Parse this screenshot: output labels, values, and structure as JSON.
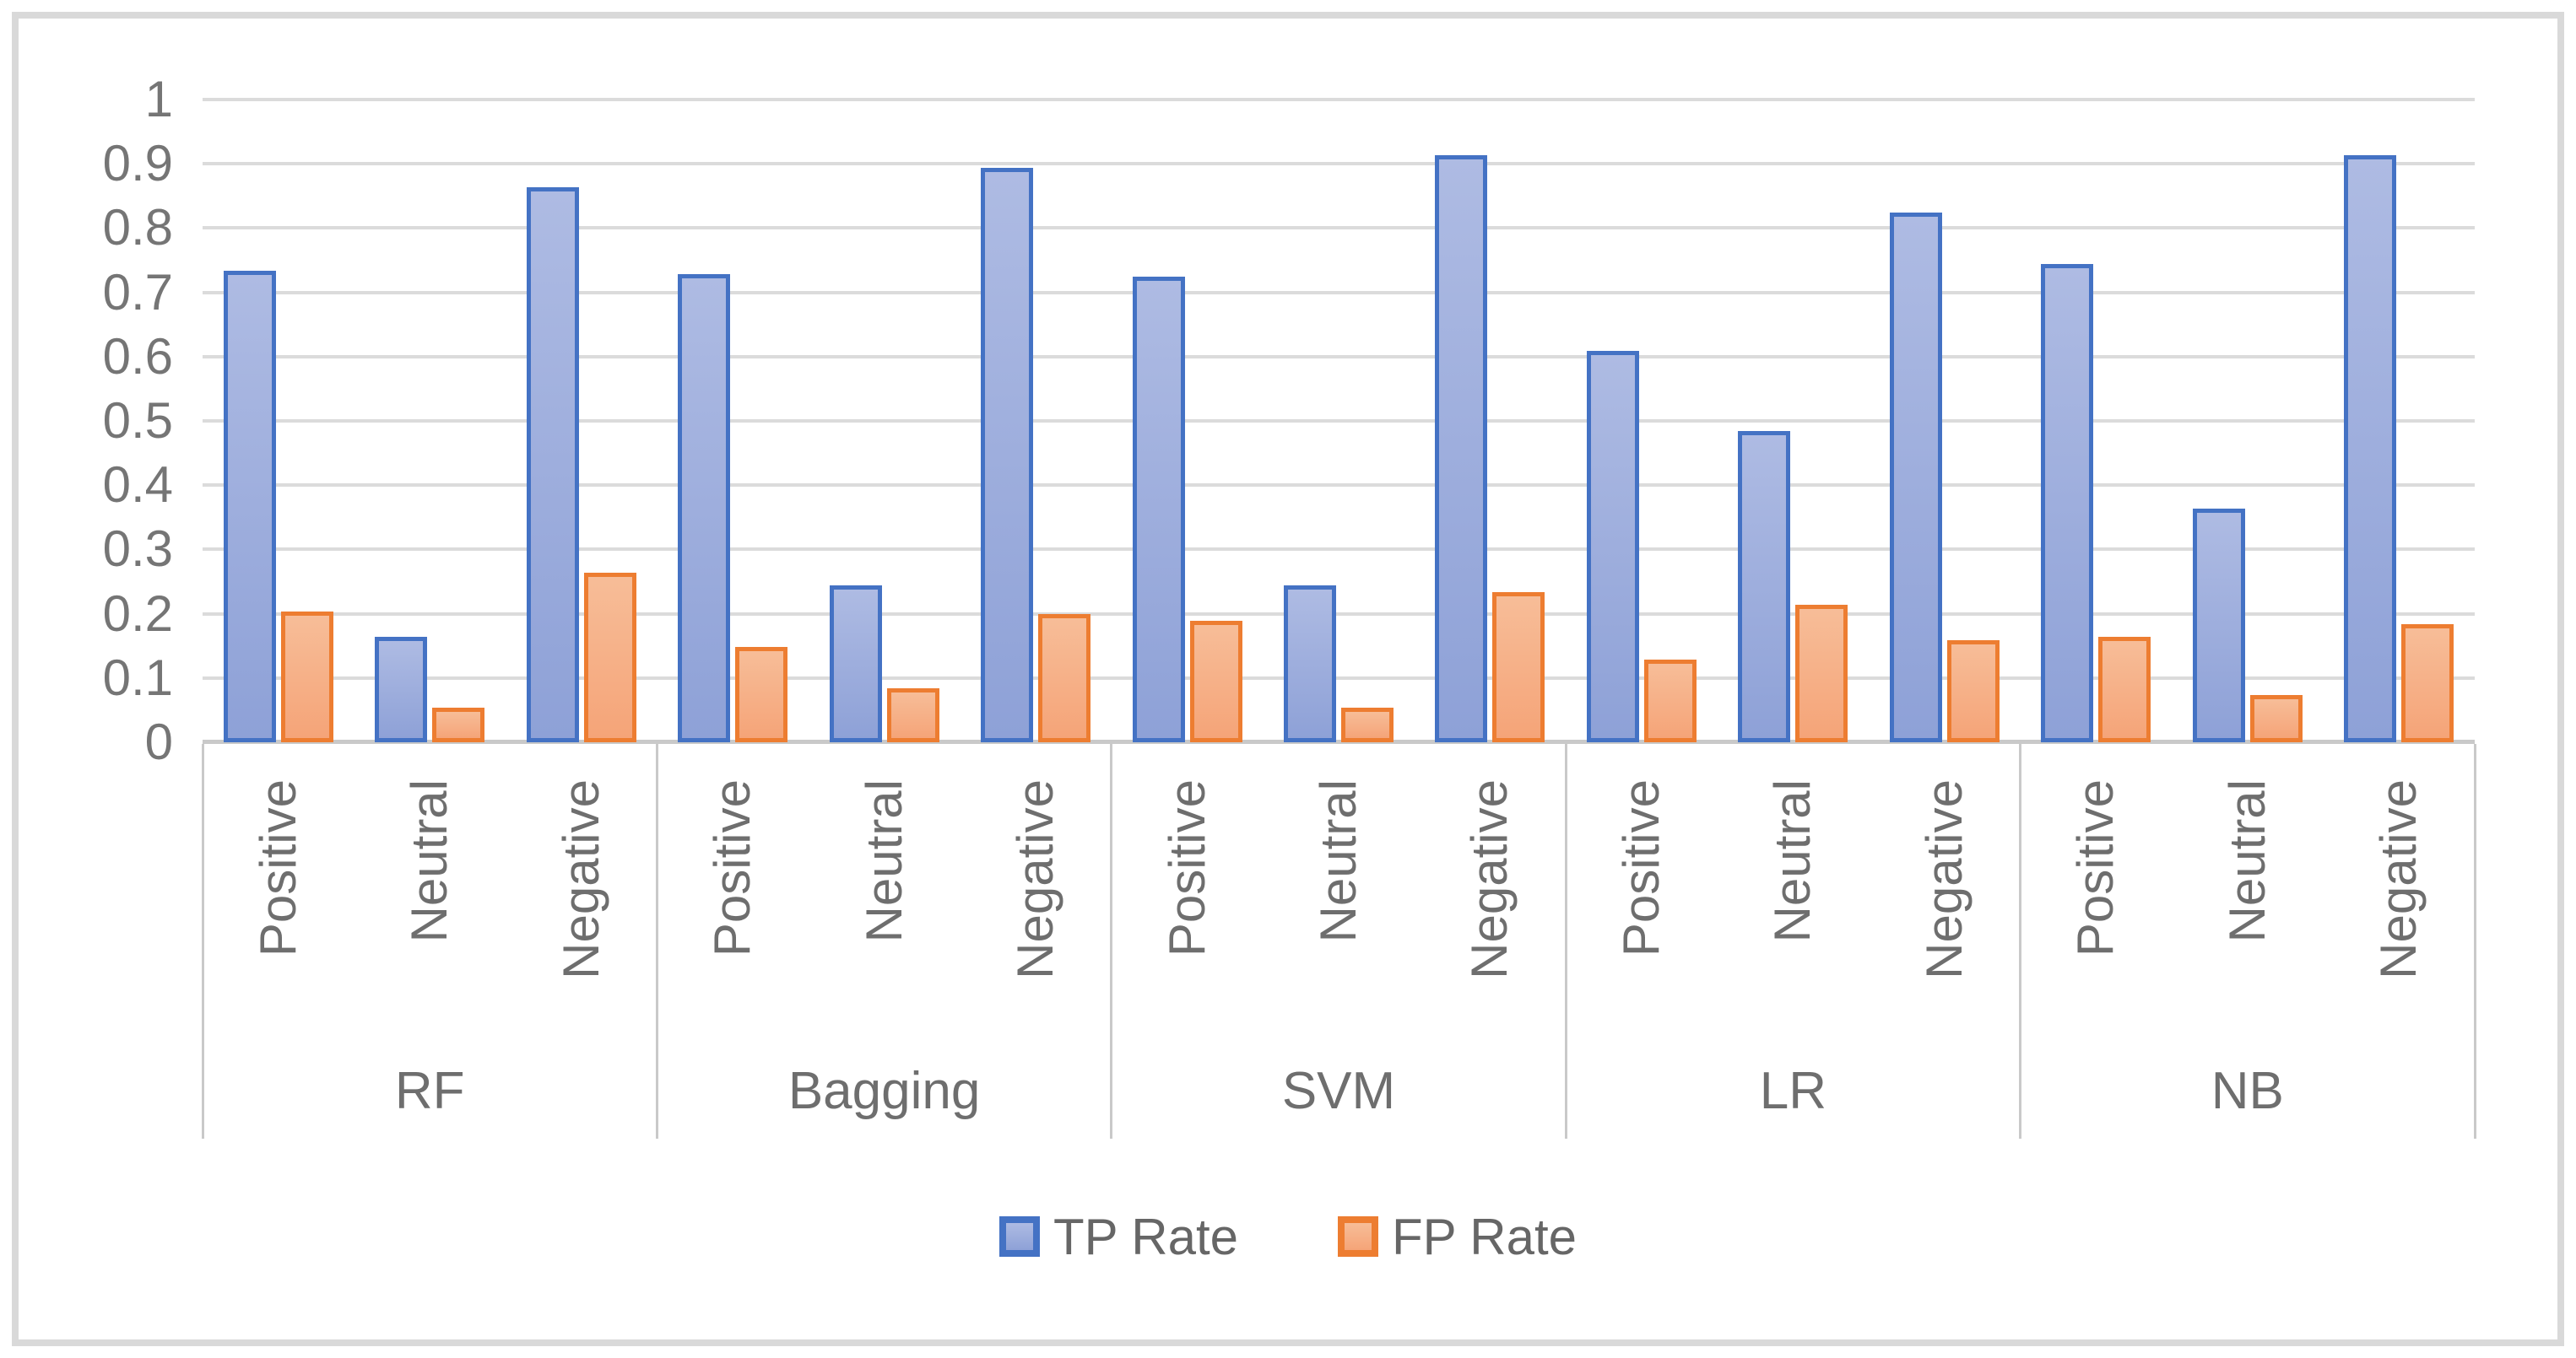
{
  "figure": {
    "background": "#FFFFFF",
    "frame_border_color": "#D9D9D9"
  },
  "chart_data": {
    "type": "bar",
    "title": "",
    "orientation": "vertical",
    "groups": [
      "RF",
      "Bagging",
      "SVM",
      "LR",
      "NB"
    ],
    "categories": [
      "Positive",
      "Neutral",
      "Negative"
    ],
    "series": [
      {
        "name": "TP Rate",
        "border_color": "#4472C4",
        "fill_top": "#AEBBE3",
        "fill_bottom": "#8EA1D7",
        "values": [
          [
            0.73,
            0.16,
            0.86
          ],
          [
            0.725,
            0.24,
            0.89
          ],
          [
            0.72,
            0.24,
            0.91
          ],
          [
            0.605,
            0.48,
            0.82
          ],
          [
            0.74,
            0.36,
            0.91
          ]
        ]
      },
      {
        "name": "FP Rate",
        "border_color": "#ED7D31",
        "fill_top": "#F7BD98",
        "fill_bottom": "#F5A478",
        "values": [
          [
            0.2,
            0.05,
            0.26
          ],
          [
            0.145,
            0.08,
            0.195
          ],
          [
            0.185,
            0.05,
            0.23
          ],
          [
            0.125,
            0.21,
            0.155
          ],
          [
            0.16,
            0.07,
            0.18
          ]
        ]
      }
    ],
    "ylim": [
      0,
      1
    ],
    "yticks": [
      0,
      0.1,
      0.2,
      0.3,
      0.4,
      0.5,
      0.6,
      0.7,
      0.8,
      0.9,
      1
    ],
    "ytick_labels": [
      "0",
      "0.1",
      "0.2",
      "0.3",
      "0.4",
      "0.5",
      "0.6",
      "0.7",
      "0.8",
      "0.9",
      "1"
    ],
    "grid": true,
    "gridline_color": "#DBDBDB",
    "axis_line_color": "#C9C9C9",
    "tick_text_color": "#757575",
    "label_text_color": "#6E6E6E",
    "legend": {
      "position": "bottom",
      "items": [
        "TP Rate",
        "FP Rate"
      ]
    }
  }
}
